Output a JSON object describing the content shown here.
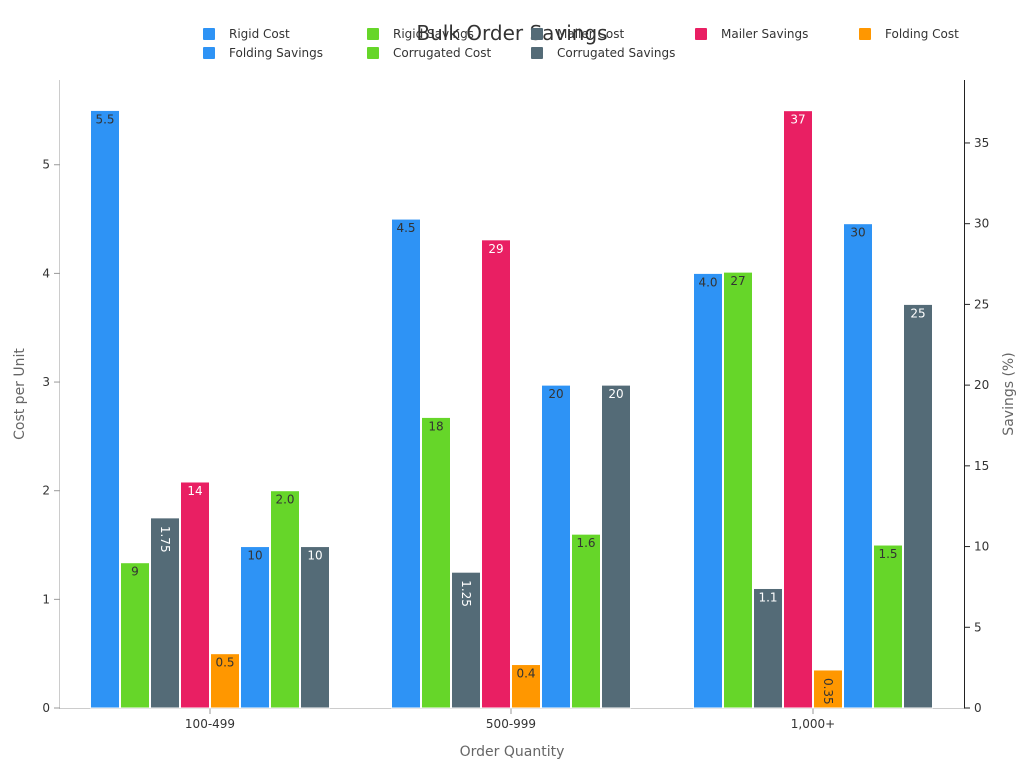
{
  "chart_data": {
    "type": "bar",
    "title": "Bulk Order Savings",
    "xlabel": "Order Quantity",
    "ylabel": "Cost per Unit",
    "y2label": "Savings (%)",
    "categories": [
      "100-499",
      "500-999",
      "1,000+"
    ],
    "ylim": [
      0,
      5.78
    ],
    "y2lim": [
      0,
      38.9
    ],
    "yticks": [
      "0",
      "1",
      "2",
      "3",
      "4",
      "5"
    ],
    "y2ticks": [
      "0",
      "5",
      "10",
      "15",
      "20",
      "25",
      "30",
      "35"
    ],
    "legend_position": "top",
    "series": [
      {
        "name": "Rigid Cost",
        "axis": "left",
        "color": "#2e93f5",
        "values": [
          5.5,
          4.5,
          4.0
        ],
        "labels": [
          "5.5",
          "4.5",
          "4.0"
        ],
        "label_color": "#333333",
        "label_rotated": [
          false,
          false,
          false
        ]
      },
      {
        "name": "Rigid Savings",
        "axis": "right",
        "color": "#66d629",
        "values": [
          9,
          18,
          27
        ],
        "labels": [
          "9",
          "18",
          "27"
        ],
        "label_color": "#333333",
        "label_rotated": [
          false,
          false,
          false
        ]
      },
      {
        "name": "Mailer Cost",
        "axis": "left",
        "color": "#546b77",
        "values": [
          1.75,
          1.25,
          1.1
        ],
        "labels": [
          "1.75",
          "1.25",
          "1.1"
        ],
        "label_color": "#ffffff",
        "label_rotated": [
          true,
          true,
          false
        ]
      },
      {
        "name": "Mailer Savings",
        "axis": "right",
        "color": "#e91f63",
        "values": [
          14,
          29,
          37
        ],
        "labels": [
          "14",
          "29",
          "37"
        ],
        "label_color": "#ffffff",
        "label_rotated": [
          false,
          false,
          false
        ]
      },
      {
        "name": "Folding Cost",
        "axis": "left",
        "color": "#ff9700",
        "values": [
          0.5,
          0.4,
          0.35
        ],
        "labels": [
          "0.5",
          "0.4",
          "0.35"
        ],
        "label_color": "#333333",
        "label_rotated": [
          false,
          false,
          true
        ]
      },
      {
        "name": "Folding Savings",
        "axis": "right",
        "color": "#2e93f5",
        "values": [
          10,
          20,
          30
        ],
        "labels": [
          "10",
          "20",
          "30"
        ],
        "label_color": "#333333",
        "label_rotated": [
          false,
          false,
          false
        ]
      },
      {
        "name": "Corrugated Cost",
        "axis": "left",
        "color": "#66d629",
        "values": [
          2.0,
          1.6,
          1.5
        ],
        "labels": [
          "2.0",
          "1.6",
          "1.5"
        ],
        "label_color": "#333333",
        "label_rotated": [
          false,
          false,
          false
        ]
      },
      {
        "name": "Corrugated Savings",
        "axis": "right",
        "color": "#546b77",
        "values": [
          10,
          20,
          25
        ],
        "labels": [
          "10",
          "20",
          "25"
        ],
        "label_color": "#ffffff",
        "label_rotated": [
          false,
          false,
          false
        ]
      }
    ]
  }
}
